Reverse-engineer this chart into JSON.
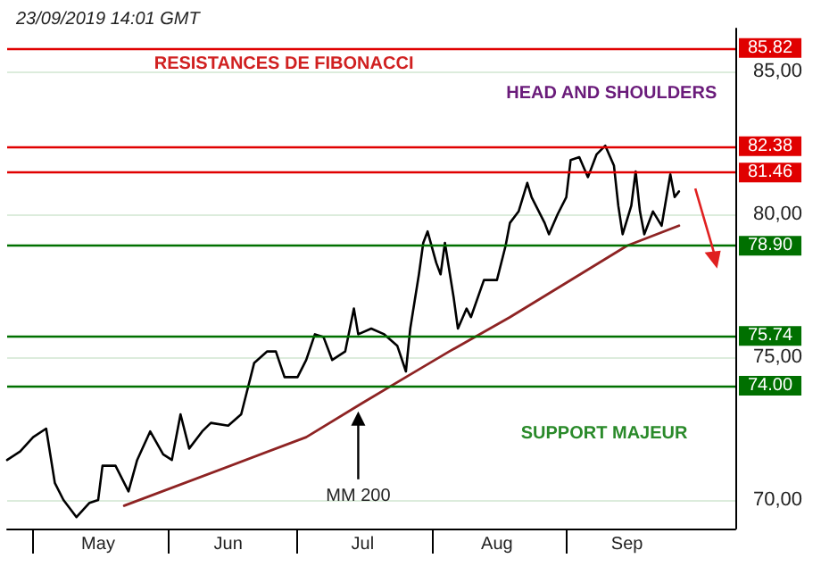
{
  "chart_data": {
    "type": "line",
    "title": "23/09/2019 14:01 GMT",
    "x": [
      "2019-04-25",
      "2019-04-28",
      "2019-05-01",
      "2019-05-04",
      "2019-05-06",
      "2019-05-08",
      "2019-05-11",
      "2019-05-14",
      "2019-05-16",
      "2019-05-17",
      "2019-05-20",
      "2019-05-23",
      "2019-05-25",
      "2019-05-28",
      "2019-05-31",
      "2019-06-02",
      "2019-06-04",
      "2019-06-06",
      "2019-06-09",
      "2019-06-11",
      "2019-06-15",
      "2019-06-18",
      "2019-06-19",
      "2019-06-20",
      "2019-06-21",
      "2019-06-24",
      "2019-06-26",
      "2019-06-28",
      "2019-07-01",
      "2019-07-03",
      "2019-07-05",
      "2019-07-07",
      "2019-07-09",
      "2019-07-12",
      "2019-07-14",
      "2019-07-15",
      "2019-07-18",
      "2019-07-21",
      "2019-07-24",
      "2019-07-26",
      "2019-07-27",
      "2019-07-29",
      "2019-07-30",
      "2019-07-31",
      "2019-08-02",
      "2019-08-03",
      "2019-08-04",
      "2019-08-06",
      "2019-08-07",
      "2019-08-09",
      "2019-08-10",
      "2019-08-13",
      "2019-08-16",
      "2019-08-18",
      "2019-08-19",
      "2019-08-21",
      "2019-08-23",
      "2019-08-24",
      "2019-08-27",
      "2019-08-28",
      "2019-08-30",
      "2019-09-01",
      "2019-09-02",
      "2019-09-04",
      "2019-09-06",
      "2019-09-08",
      "2019-09-10",
      "2019-09-12",
      "2019-09-13",
      "2019-09-14",
      "2019-09-16",
      "2019-09-17",
      "2019-09-18",
      "2019-09-19",
      "2019-09-21",
      "2019-09-23",
      "2019-09-25",
      "2019-09-26",
      "2019-09-27"
    ],
    "series": [
      {
        "color": "#000000",
        "values": [
          71.4,
          71.7,
          72.2,
          72.5,
          70.6,
          70.0,
          69.4,
          69.9,
          70.0,
          71.2,
          71.2,
          70.3,
          71.4,
          72.4,
          71.6,
          71.4,
          73.0,
          71.8,
          72.4,
          72.7,
          72.6,
          73.0,
          73.6,
          74.2,
          74.8,
          75.2,
          75.2,
          74.3,
          74.3,
          74.9,
          75.8,
          75.7,
          74.9,
          75.2,
          76.7,
          75.8,
          76.0,
          75.8,
          75.4,
          74.5,
          76.0,
          77.9,
          79.0,
          79.4,
          78.3,
          77.9,
          79.0,
          77.1,
          76.0,
          76.7,
          76.4,
          77.7,
          77.7,
          78.9,
          79.7,
          80.1,
          81.1,
          80.6,
          79.7,
          79.3,
          80.0,
          80.6,
          81.9,
          82.0,
          81.3,
          82.1,
          82.4,
          81.7,
          80.3,
          79.3,
          80.3,
          81.5,
          80.1,
          79.3,
          80.1,
          79.6,
          81.4,
          80.6,
          80.8
        ]
      },
      {
        "color": "#8e2323",
        "x": [
          "2019-05-22",
          "2019-07-03",
          "2019-07-16",
          "2019-07-26",
          "2019-08-05",
          "2019-08-19",
          "2019-09-01",
          "2019-09-15",
          "2019-09-27"
        ],
        "values": [
          69.8,
          72.2,
          73.4,
          74.3,
          75.2,
          76.4,
          77.6,
          78.9,
          79.6
        ]
      }
    ],
    "xlim": [
      "2019-04-25",
      "2019-10-10"
    ],
    "xticks": [
      {
        "value": "2019-05-01",
        "label": null
      },
      {
        "value": "2019-05-16",
        "label": "May"
      },
      {
        "value": "2019-06-01",
        "label": null
      },
      {
        "value": "2019-06-15",
        "label": "Jun"
      },
      {
        "value": "2019-07-01",
        "label": null
      },
      {
        "value": "2019-07-16",
        "label": "Jul"
      },
      {
        "value": "2019-08-01",
        "label": null
      },
      {
        "value": "2019-08-16",
        "label": "Aug"
      },
      {
        "value": "2019-09-01",
        "label": null
      },
      {
        "value": "2019-09-15",
        "label": "Sep"
      }
    ],
    "ylim": [
      69,
      86.5
    ],
    "yticks": [
      {
        "value": 70,
        "label": "70,00"
      },
      {
        "value": 75,
        "label": "75,00"
      },
      {
        "value": 80,
        "label": "80,00"
      },
      {
        "value": 85,
        "label": "85,00"
      }
    ],
    "grid": "y",
    "legend": false,
    "marker": "none",
    "line_style": "solid",
    "ref_lines": [
      {
        "axis": "y",
        "value": 85.82,
        "label": "85.82",
        "color": "#e00000"
      },
      {
        "axis": "y",
        "value": 82.38,
        "label": "82.38",
        "color": "#e00000"
      },
      {
        "axis": "y",
        "value": 81.46,
        "label": "81.46",
        "color": "#e00000"
      },
      {
        "axis": "y",
        "value": 78.9,
        "label": "78.90",
        "color": "#007000"
      },
      {
        "axis": "y",
        "value": 75.74,
        "label": "75.74",
        "color": "#007000"
      },
      {
        "axis": "y",
        "value": 74.0,
        "label": "74.00",
        "color": "#007000"
      }
    ],
    "annotations": [
      "RESISTANCES DE FIBONACCI",
      "HEAD AND SHOULDERS",
      "SUPPORT MAJEUR",
      {
        "text": "MM 200",
        "x": "2019-07-15",
        "y": 73.1
      }
    ]
  }
}
